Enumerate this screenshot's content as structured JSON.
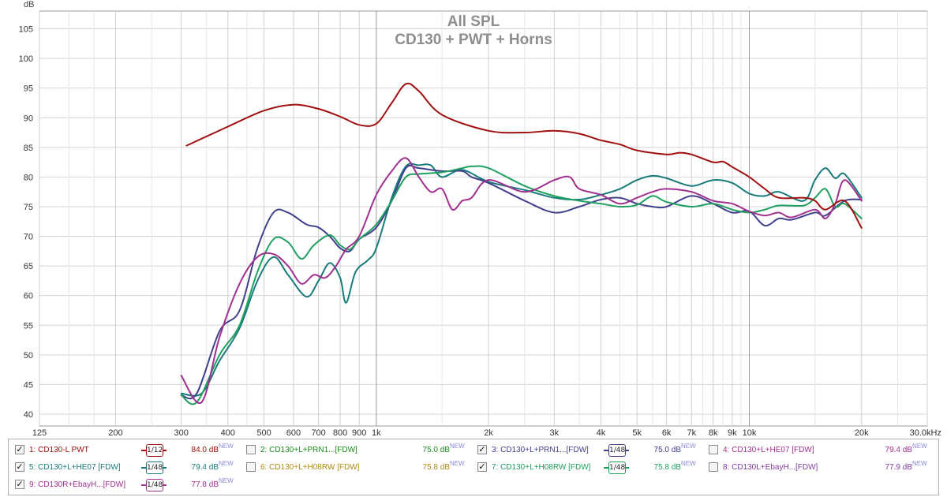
{
  "chart_data": {
    "type": "line",
    "title": "All SPL",
    "subtitle": "CD130 + PWT + Horns",
    "ylabel": "dB",
    "xscale": "log",
    "xlim": [
      125,
      30000
    ],
    "ylim": [
      38,
      108
    ],
    "grid": true,
    "yticks": [
      40,
      45,
      50,
      55,
      60,
      65,
      70,
      75,
      80,
      85,
      90,
      95,
      100,
      105
    ],
    "ytick_labels": [
      "40",
      "45",
      "50",
      "55",
      "60",
      "65",
      "70",
      "75",
      "80",
      "85",
      "90",
      "95",
      "100",
      "105"
    ],
    "xticks": [
      125,
      200,
      300,
      400,
      500,
      600,
      700,
      800,
      900,
      1000,
      2000,
      3000,
      4000,
      5000,
      6000,
      7000,
      8000,
      9000,
      10000,
      20000,
      30000
    ],
    "xtick_labels": [
      "125",
      "200",
      "300",
      "400",
      "500",
      "600",
      "700",
      "800",
      "900",
      "1k",
      "2k",
      "3k",
      "4k",
      "5k",
      "6k",
      "7k",
      "8k",
      "9k",
      "10k",
      "20k",
      "30.0kHz"
    ],
    "series": [
      {
        "name": "1: CD130-L PWT",
        "color": "#a01010",
        "points": [
          [
            310,
            85.3
          ],
          [
            400,
            88.5
          ],
          [
            500,
            91.2
          ],
          [
            600,
            92.2
          ],
          [
            700,
            91.5
          ],
          [
            800,
            90.2
          ],
          [
            900,
            88.8
          ],
          [
            1000,
            89.0
          ],
          [
            1100,
            92.5
          ],
          [
            1200,
            95.7
          ],
          [
            1300,
            94.5
          ],
          [
            1500,
            90.5
          ],
          [
            2000,
            87.8
          ],
          [
            2500,
            87.5
          ],
          [
            3000,
            87.8
          ],
          [
            3500,
            87.3
          ],
          [
            4000,
            86.2
          ],
          [
            4500,
            85.5
          ],
          [
            5000,
            84.5
          ],
          [
            6000,
            83.8
          ],
          [
            6500,
            84.1
          ],
          [
            7000,
            83.8
          ],
          [
            8000,
            82.5
          ],
          [
            8500,
            82.6
          ],
          [
            9000,
            81.7
          ],
          [
            10000,
            80.0
          ],
          [
            11000,
            78.0
          ],
          [
            12000,
            76.5
          ],
          [
            14000,
            76.5
          ],
          [
            15000,
            76.0
          ],
          [
            16000,
            74.5
          ],
          [
            18000,
            76.0
          ],
          [
            20000,
            71.4
          ]
        ]
      },
      {
        "name": "5: CD130+L+HE07 [FDW]",
        "color": "#187a7a",
        "points": [
          [
            300,
            43.5
          ],
          [
            340,
            43.5
          ],
          [
            380,
            49.0
          ],
          [
            430,
            54.5
          ],
          [
            480,
            62.5
          ],
          [
            530,
            66.5
          ],
          [
            580,
            63.5
          ],
          [
            650,
            59.8
          ],
          [
            700,
            62.5
          ],
          [
            750,
            65.5
          ],
          [
            800,
            63.0
          ],
          [
            830,
            58.8
          ],
          [
            880,
            64.0
          ],
          [
            950,
            66.0
          ],
          [
            1000,
            68.0
          ],
          [
            1100,
            76.5
          ],
          [
            1200,
            81.8
          ],
          [
            1300,
            82.0
          ],
          [
            1400,
            82.0
          ],
          [
            1500,
            80.0
          ],
          [
            1700,
            81.2
          ],
          [
            2000,
            79.2
          ],
          [
            2500,
            77.8
          ],
          [
            3000,
            76.5
          ],
          [
            3500,
            76.2
          ],
          [
            4000,
            77.0
          ],
          [
            4500,
            78.0
          ],
          [
            5000,
            79.5
          ],
          [
            5500,
            80.2
          ],
          [
            6000,
            79.8
          ],
          [
            7000,
            78.5
          ],
          [
            8000,
            79.5
          ],
          [
            9000,
            79.0
          ],
          [
            10000,
            77.2
          ],
          [
            11000,
            76.8
          ],
          [
            12000,
            77.5
          ],
          [
            14000,
            76.0
          ],
          [
            15000,
            79.5
          ],
          [
            16000,
            81.5
          ],
          [
            17000,
            79.8
          ],
          [
            18000,
            80.5
          ],
          [
            20000,
            76.5
          ]
        ]
      },
      {
        "name": "3: CD130+L+PRN1...[FDW]",
        "color": "#40408c",
        "points": [
          [
            300,
            43.2
          ],
          [
            330,
            43.5
          ],
          [
            380,
            54.0
          ],
          [
            430,
            57.5
          ],
          [
            480,
            68.0
          ],
          [
            530,
            74.0
          ],
          [
            580,
            74.0
          ],
          [
            650,
            72.0
          ],
          [
            700,
            71.5
          ],
          [
            750,
            70.0
          ],
          [
            800,
            68.0
          ],
          [
            850,
            67.5
          ],
          [
            900,
            69.5
          ],
          [
            1000,
            71.5
          ],
          [
            1100,
            76.0
          ],
          [
            1200,
            81.5
          ],
          [
            1300,
            81.5
          ],
          [
            1500,
            81.0
          ],
          [
            1700,
            81.0
          ],
          [
            1800,
            80.0
          ],
          [
            2000,
            79.0
          ],
          [
            2500,
            76.0
          ],
          [
            3000,
            74.0
          ],
          [
            3500,
            75.0
          ],
          [
            4000,
            76.2
          ],
          [
            4500,
            76.5
          ],
          [
            5000,
            75.5
          ],
          [
            5500,
            75.0
          ],
          [
            6000,
            75.0
          ],
          [
            7000,
            76.8
          ],
          [
            8000,
            75.5
          ],
          [
            9000,
            74.0
          ],
          [
            10000,
            74.2
          ],
          [
            11000,
            71.8
          ],
          [
            12000,
            73.0
          ],
          [
            13000,
            72.8
          ],
          [
            15000,
            74.0
          ],
          [
            16000,
            73.5
          ],
          [
            18000,
            76.0
          ],
          [
            20000,
            76.2
          ]
        ]
      },
      {
        "name": "7: CD130+L+H08RW [FDW]",
        "color": "#20a060",
        "points": [
          [
            300,
            43.2
          ],
          [
            330,
            42.0
          ],
          [
            380,
            50.0
          ],
          [
            430,
            55.0
          ],
          [
            480,
            64.0
          ],
          [
            530,
            69.5
          ],
          [
            580,
            69.0
          ],
          [
            630,
            66.2
          ],
          [
            680,
            68.5
          ],
          [
            750,
            70.2
          ],
          [
            800,
            68.5
          ],
          [
            850,
            67.8
          ],
          [
            900,
            69.5
          ],
          [
            1000,
            72.0
          ],
          [
            1100,
            76.0
          ],
          [
            1200,
            80.0
          ],
          [
            1300,
            80.5
          ],
          [
            1500,
            80.8
          ],
          [
            1700,
            81.5
          ],
          [
            1800,
            81.8
          ],
          [
            2000,
            81.5
          ],
          [
            2500,
            78.5
          ],
          [
            3000,
            76.8
          ],
          [
            3500,
            76.0
          ],
          [
            4000,
            75.5
          ],
          [
            4500,
            75.0
          ],
          [
            5000,
            75.3
          ],
          [
            5500,
            76.8
          ],
          [
            6000,
            75.8
          ],
          [
            7000,
            75.0
          ],
          [
            8000,
            75.5
          ],
          [
            9000,
            74.5
          ],
          [
            10000,
            74.0
          ],
          [
            11000,
            74.5
          ],
          [
            12000,
            75.2
          ],
          [
            14000,
            75.2
          ],
          [
            15000,
            76.5
          ],
          [
            16000,
            78.0
          ],
          [
            17000,
            75.0
          ],
          [
            18000,
            75.5
          ],
          [
            20000,
            73.0
          ]
        ]
      },
      {
        "name": "9: CD130R+EbayH...[FDW]",
        "color": "#a03090",
        "points": [
          [
            300,
            46.5
          ],
          [
            340,
            42.0
          ],
          [
            380,
            53.0
          ],
          [
            430,
            62.0
          ],
          [
            480,
            66.5
          ],
          [
            530,
            67.0
          ],
          [
            580,
            65.0
          ],
          [
            630,
            62.0
          ],
          [
            680,
            63.5
          ],
          [
            730,
            63.0
          ],
          [
            780,
            65.0
          ],
          [
            830,
            67.8
          ],
          [
            900,
            70.0
          ],
          [
            1000,
            77.0
          ],
          [
            1100,
            81.0
          ],
          [
            1200,
            83.2
          ],
          [
            1300,
            80.0
          ],
          [
            1400,
            77.5
          ],
          [
            1500,
            78.0
          ],
          [
            1600,
            74.5
          ],
          [
            1700,
            76.0
          ],
          [
            1800,
            76.5
          ],
          [
            2000,
            79.5
          ],
          [
            2500,
            77.5
          ],
          [
            3000,
            79.5
          ],
          [
            3300,
            80.0
          ],
          [
            3500,
            78.0
          ],
          [
            4000,
            77.0
          ],
          [
            4500,
            75.5
          ],
          [
            5000,
            76.5
          ],
          [
            5500,
            77.5
          ],
          [
            6000,
            78.0
          ],
          [
            7000,
            77.5
          ],
          [
            8000,
            76.0
          ],
          [
            9000,
            75.5
          ],
          [
            10000,
            74.2
          ],
          [
            11000,
            73.5
          ],
          [
            12000,
            74.0
          ],
          [
            13000,
            73.2
          ],
          [
            15000,
            74.5
          ],
          [
            16000,
            73.0
          ],
          [
            17000,
            75.5
          ],
          [
            18000,
            79.5
          ],
          [
            20000,
            76.0
          ]
        ]
      }
    ]
  },
  "legend": [
    {
      "label": "1: CD130-L PWT",
      "checked": true,
      "color": "#a01010",
      "smoothing": "1/12",
      "value": "84.0 dB",
      "badge": "NEW"
    },
    {
      "label": "2: CD130+L+PRN1...[FDW]",
      "checked": false,
      "color": "#1a8a1a",
      "smoothing": "",
      "value": "75.0 dB",
      "badge": "NEW"
    },
    {
      "label": "3: CD130+L+PRN1...[FDW]",
      "checked": true,
      "color": "#40408c",
      "smoothing": "1/48",
      "value": "75.0 dB",
      "badge": "NEW"
    },
    {
      "label": "4: CD130+L+HE07 [FDW]",
      "checked": false,
      "color": "#a03090",
      "smoothing": "",
      "value": "79.4 dB",
      "badge": "NEW"
    },
    {
      "label": "5: CD130+L+HE07 [FDW]",
      "checked": true,
      "color": "#187a7a",
      "smoothing": "1/48",
      "value": "79.4 dB",
      "badge": "NEW"
    },
    {
      "label": "6: CD130+L+H08RW [FDW]",
      "checked": false,
      "color": "#b08a10",
      "smoothing": "",
      "value": "75.8 dB",
      "badge": "NEW"
    },
    {
      "label": "7: CD130+L+H08RW [FDW]",
      "checked": true,
      "color": "#20a060",
      "smoothing": "1/48",
      "value": "75.8 dB",
      "badge": "NEW"
    },
    {
      "label": "8: CD130L+EbayH...[FDW]",
      "checked": false,
      "color": "#8040a0",
      "smoothing": "",
      "value": "77.9 dB",
      "badge": "NEW"
    },
    {
      "label": "9: CD130R+EbayH...[FDW]",
      "checked": true,
      "color": "#a03090",
      "smoothing": "1/48",
      "value": "77.8 dB",
      "badge": "NEW"
    }
  ],
  "check_mark": "✓"
}
